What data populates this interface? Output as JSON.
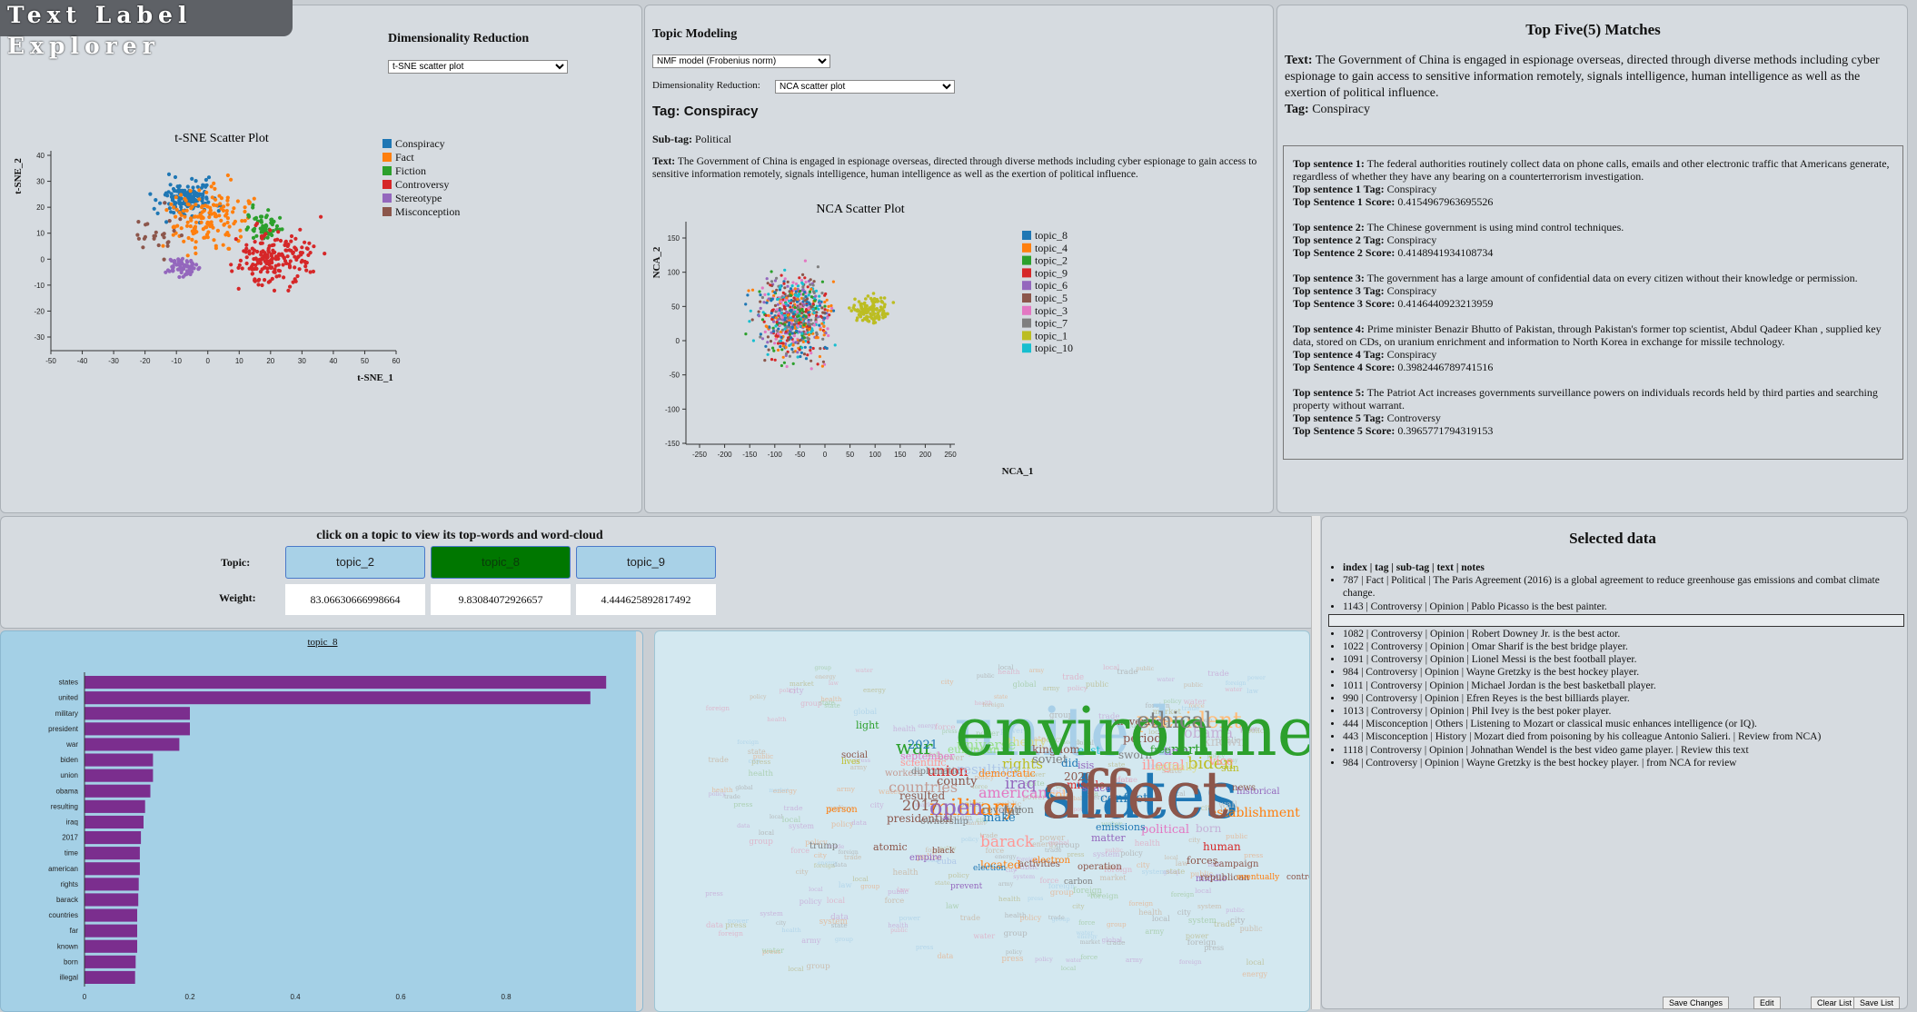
{
  "app": {
    "title": "Text Label Explorer"
  },
  "dimred": {
    "heading": "Dimensionality Reduction",
    "select_value": "t-SNE scatter plot",
    "plot_title": "t-SNE Scatter Plot",
    "xlabel": "t-SNE_1",
    "ylabel": "t-SNE_2",
    "xticks": [
      "-50",
      "-40",
      "-30",
      "-20",
      "-10",
      "0",
      "10",
      "20",
      "30",
      "40",
      "50",
      "60"
    ],
    "yticks": [
      "40",
      "30",
      "20",
      "10",
      "0",
      "-10",
      "-20",
      "-30"
    ],
    "legend": [
      {
        "label": "Conspiracy",
        "color": "#1f77b4"
      },
      {
        "label": "Fact",
        "color": "#ff7f0e"
      },
      {
        "label": "Fiction",
        "color": "#2ca02c"
      },
      {
        "label": "Controversy",
        "color": "#d62728"
      },
      {
        "label": "Stereotype",
        "color": "#9467bd"
      },
      {
        "label": "Misconception",
        "color": "#8c564b"
      }
    ]
  },
  "topic_modeling": {
    "heading": "Topic Modeling",
    "model_select": "NMF model (Frobenius norm)",
    "dimred_label": "Dimensionality Reduction:",
    "dimred_select": "NCA scatter plot",
    "tag": "Tag: Conspiracy",
    "subtag_label": "Sub-tag:",
    "subtag_value": "Political",
    "text_label": "Text:",
    "text_value": "The Government of China is engaged in espionage overseas, directed through diverse methods including cyber espionage to gain access to sensitive information remotely, signals intelligence, human intelligence as well as the exertion of political influence.",
    "plot_title": "NCA Scatter Plot",
    "xlabel": "NCA_1",
    "ylabel": "NCA_2",
    "xticks": [
      "-250",
      "-200",
      "-150",
      "-100",
      "-50",
      "0",
      "50",
      "100",
      "150",
      "200",
      "250"
    ],
    "yticks": [
      "150",
      "100",
      "50",
      "0",
      "-50",
      "-100",
      "-150"
    ],
    "legend": [
      {
        "label": "topic_8",
        "color": "#1f77b4"
      },
      {
        "label": "topic_4",
        "color": "#ff7f0e"
      },
      {
        "label": "topic_2",
        "color": "#2ca02c"
      },
      {
        "label": "topic_9",
        "color": "#d62728"
      },
      {
        "label": "topic_6",
        "color": "#9467bd"
      },
      {
        "label": "topic_5",
        "color": "#8c564b"
      },
      {
        "label": "topic_3",
        "color": "#e377c2"
      },
      {
        "label": "topic_7",
        "color": "#7f7f7f"
      },
      {
        "label": "topic_1",
        "color": "#bcbd22"
      },
      {
        "label": "topic_10",
        "color": "#17becf"
      }
    ]
  },
  "matches": {
    "heading": "Top Five(5) Matches",
    "query_text_label": "Text:",
    "query_text": "The Government of China is engaged in espionage overseas, directed through diverse methods including cyber espionage to gain access to sensitive information remotely, signals intelligence, human intelligence as well as the exertion of political influence.",
    "query_tag_label": "Tag:",
    "query_tag": "Conspiracy",
    "items": [
      {
        "s_label": "Top sentence 1:",
        "sentence": "The federal authorities routinely collect data on phone calls, emails and other electronic traffic that Americans generate, regardless of whether they have any bearing on a counterterrorism investigation.",
        "t_label": "Top sentence 1 Tag:",
        "tag": "Conspiracy",
        "sc_label": "Top Sentence 1 Score:",
        "score": "0.4154967963695526"
      },
      {
        "s_label": "Top sentence 2:",
        "sentence": "The Chinese government is using mind control techniques.",
        "t_label": "Top sentence 2 Tag:",
        "tag": "Conspiracy",
        "sc_label": "Top Sentence 2 Score:",
        "score": "0.4148941934108734"
      },
      {
        "s_label": "Top sentence 3:",
        "sentence": "The government has a large amount of confidential data on every citizen without their knowledge or permission.",
        "t_label": "Top sentence 3 Tag:",
        "tag": "Conspiracy",
        "sc_label": "Top Sentence 3 Score:",
        "score": "0.4146440923213959"
      },
      {
        "s_label": "Top sentence 4:",
        "sentence": "Prime minister Benazir Bhutto  of Pakistan, through Pakistan's former top scientist, Abdul Qadeer Khan , supplied key data, stored on CDs, on uranium enrichment and information to North Korea in exchange for missile technology.",
        "t_label": "Top sentence 4 Tag:",
        "tag": "Conspiracy",
        "sc_label": "Top Sentence 4 Score:",
        "score": "0.3982446789741516"
      },
      {
        "s_label": "Top sentence 5:",
        "sentence": "The Patriot Act increases governments surveillance powers on individuals records held by third parties and searching property without warrant.",
        "t_label": "Top sentence 5 Tag:",
        "tag": "Controversy",
        "sc_label": "Top Sentence 5 Score:",
        "score": "0.3965771794319153"
      }
    ]
  },
  "topics": {
    "heading": "click on a topic to view its top-words and word-cloud",
    "topic_label": "Topic:",
    "weight_label": "Weight:",
    "cells": [
      {
        "name": "topic_2",
        "weight": "83.06630666998664",
        "bg": "#a8d1e7"
      },
      {
        "name": "topic_8",
        "weight": "9.83084072926657",
        "bg": "#007700"
      },
      {
        "name": "topic_9",
        "weight": "4.444625892817492",
        "bg": "#a8d1e7"
      }
    ]
  },
  "bar_chart": {
    "title": "topic_8",
    "color": "#7b2e8e",
    "xticks": [
      "0",
      "0.2",
      "0.4",
      "0.6",
      "0.8"
    ]
  },
  "chart_data": {
    "type": "bar",
    "orientation": "horizontal",
    "title": "topic_8",
    "categories": [
      "states",
      "united",
      "military",
      "president",
      "war",
      "biden",
      "union",
      "obama",
      "resulting",
      "iraq",
      "2017",
      "time",
      "american",
      "rights",
      "barack",
      "countries",
      "far",
      "known",
      "born",
      "illegal"
    ],
    "values": [
      0.99,
      0.96,
      0.2,
      0.2,
      0.18,
      0.13,
      0.13,
      0.125,
      0.115,
      0.112,
      0.107,
      0.105,
      0.105,
      0.103,
      0.102,
      0.1,
      0.1,
      0.1,
      0.097,
      0.096
    ],
    "xlim": [
      0,
      1.0
    ]
  },
  "wordcloud": {
    "words": [
      {
        "t": "united",
        "c": "#a8cfe8"
      },
      {
        "t": "states",
        "c": "#1f77b4"
      },
      {
        "t": "president",
        "c": "#ffbb78"
      },
      {
        "t": "military",
        "c": "#ff7f0e"
      },
      {
        "t": "war",
        "c": "#2ca02c"
      },
      {
        "t": "obama",
        "c": "#c5b0d5"
      },
      {
        "t": "biden",
        "c": "#bcbd22"
      },
      {
        "t": "union",
        "c": "#d62728"
      },
      {
        "t": "illegal",
        "c": "#ff9896"
      },
      {
        "t": "north",
        "c": "#2ca02c"
      },
      {
        "t": "american",
        "c": "#e377c2"
      },
      {
        "t": "iraq",
        "c": "#9467bd"
      },
      {
        "t": "rights",
        "c": "#bcbd22"
      },
      {
        "t": "countries",
        "c": "#c49c94"
      },
      {
        "t": "2017",
        "c": "#8c564b"
      },
      {
        "t": "barack",
        "c": "#ff9896"
      },
      {
        "t": "far",
        "c": "#7f7f7f"
      },
      {
        "t": "make",
        "c": "#1f77b4"
      },
      {
        "t": "soviet",
        "c": "#7f7f7f"
      },
      {
        "t": "period",
        "c": "#8c564b"
      },
      {
        "t": "theory",
        "c": "#dbdb8d"
      },
      {
        "t": "universe",
        "c": "#98df8a"
      },
      {
        "t": "resulting",
        "c": "#aec7e8"
      },
      {
        "t": "establishment",
        "c": "#ff7f0e"
      },
      {
        "t": "county",
        "c": "#8c564b"
      },
      {
        "t": "political",
        "c": "#e377c2"
      },
      {
        "t": "born",
        "c": "#c5b0d5"
      },
      {
        "t": "human",
        "c": "#d62728"
      },
      {
        "t": "time",
        "c": "#9467bd"
      },
      {
        "t": "known",
        "c": "#c7c7c7"
      },
      {
        "t": "2021",
        "c": "#1f77b4"
      },
      {
        "t": "european",
        "c": "#98df8a"
      },
      {
        "t": "cold",
        "c": "#ffbb78"
      },
      {
        "t": "missile",
        "c": "#d62728"
      },
      {
        "t": "conflict",
        "c": "#1f77b4"
      },
      {
        "t": "kingdom",
        "c": "#8c564b"
      },
      {
        "t": "east",
        "c": "#17becf"
      },
      {
        "t": "sworn",
        "c": "#7f7f7f"
      },
      {
        "t": "did",
        "c": "#1f77b4"
      },
      {
        "t": "2020",
        "c": "#8c564b"
      },
      {
        "t": "isis",
        "c": "#9467bd"
      },
      {
        "t": "free",
        "c": "#2ca02c"
      },
      {
        "t": "actually",
        "c": "#dbdb8d"
      },
      {
        "t": "vice",
        "c": "#ff9896"
      },
      {
        "t": "sun",
        "c": "#bcbd22"
      },
      {
        "t": "resulted",
        "c": "#8c564b"
      },
      {
        "t": "september",
        "c": "#e377c2"
      },
      {
        "t": "workers",
        "c": "#c49c94"
      },
      {
        "t": "scientific",
        "c": "#ff9896"
      },
      {
        "t": "diplomatic",
        "c": "#7f7f7f"
      },
      {
        "t": "presidential",
        "c": "#8c564b"
      },
      {
        "t": "ownership",
        "c": "#7f7f7f"
      },
      {
        "t": "located",
        "c": "#ff7f0e"
      },
      {
        "t": "matter",
        "c": "#9467bd"
      },
      {
        "t": "forces",
        "c": "#8c564b"
      },
      {
        "t": "middle",
        "c": "#9467bd"
      },
      {
        "t": "operation",
        "c": "#8c564b"
      },
      {
        "t": "electron",
        "c": "#ff7f0e"
      },
      {
        "t": "emissions",
        "c": "#1f77b4"
      },
      {
        "t": "space",
        "c": "#9467bd"
      },
      {
        "t": "social",
        "c": "#8c564b"
      },
      {
        "t": "light",
        "c": "#2ca02c"
      },
      {
        "t": "movement",
        "c": "#8c564b"
      },
      {
        "t": "historical",
        "c": "#9467bd"
      },
      {
        "t": "better",
        "c": "#d62728"
      },
      {
        "t": "news",
        "c": "#8c564b"
      },
      {
        "t": "wall",
        "c": "#c7c7c7"
      },
      {
        "t": "campaign",
        "c": "#8c564b"
      },
      {
        "t": "democratic",
        "c": "#ff7f0e"
      },
      {
        "t": "revolution",
        "c": "#7f7f7f"
      },
      {
        "t": "atomic",
        "c": "#8c564b"
      },
      {
        "t": "person",
        "c": "#ff7f0e"
      },
      {
        "t": "empire",
        "c": "#9467bd"
      },
      {
        "t": "black",
        "c": "#8c564b"
      },
      {
        "t": "lives",
        "c": "#bcbd22"
      },
      {
        "t": "trump",
        "c": "#7f7f7f"
      },
      {
        "t": "cuba",
        "c": "#aec7e8"
      },
      {
        "t": "election",
        "c": "#1f77b4"
      },
      {
        "t": "activities",
        "c": "#8c564b"
      },
      {
        "t": "carbon",
        "c": "#7f7f7f"
      },
      {
        "t": "prevent",
        "c": "#9467bd"
      },
      {
        "t": "republican",
        "c": "#8c564b"
      },
      {
        "t": "eventually",
        "c": "#ff7f0e"
      },
      {
        "t": "controlling",
        "c": "#8c564b"
      },
      {
        "t": "environmental",
        "c": "#2ca02c"
      },
      {
        "t": "affect",
        "c": "#8c564b"
      },
      {
        "t": "ethical",
        "c": "#7f7f7f"
      },
      {
        "t": "open",
        "c": "#9467bd"
      }
    ]
  },
  "selected": {
    "heading": "Selected data",
    "header_row": "index  |  tag  |  sub-tag  |  text  |  notes",
    "rows": [
      "787  |  Fact  |  Political  |  The Paris Agreement (2016) is a global agreement to reduce greenhouse gas emissions and combat climate change.",
      "1143  |  Controversy  |  Opinion  |  Pablo Picasso is the best painter.",
      "1082  |  Controversy  |  Opinion  |  Robert Downey Jr. is the best actor.",
      "1022  |  Controversy  |  Opinion  |  Omar Sharif is the best bridge player.",
      "1091  |  Controversy  |  Opinion  |  Lionel Messi is the best football player.",
      "984  |  Controversy  |  Opinion  |  Wayne Gretzky is the best hockey player.",
      "1011  |  Controversy  |  Opinion  |  Michael Jordan is the best basketball player.",
      "990  |  Controversy  |  Opinion  |  Efren Reyes is the best billiards player.",
      "1013  |  Controversy  |  Opinion  |  Phil Ivey is the best poker player.",
      "444  |  Misconception  |  Others  |  Listening to Mozart or classical music enhances intelligence (or IQ).",
      "443  |  Misconception  |  History  |  Mozart died from poisoning by his colleague Antonio Salieri. | Review from NCA)",
      "1118  |  Controversy  |  Opinion  |  Johnathan Wendel is the best video game player. | Review this text",
      "984  |  Controversy  |  Opinion  |  Wayne Gretzky is the best hockey player. | from NCA for review"
    ],
    "buttons": {
      "save": "Save Changes",
      "edit": "Edit",
      "clear": "Clear List",
      "savelist": "Save List"
    }
  }
}
